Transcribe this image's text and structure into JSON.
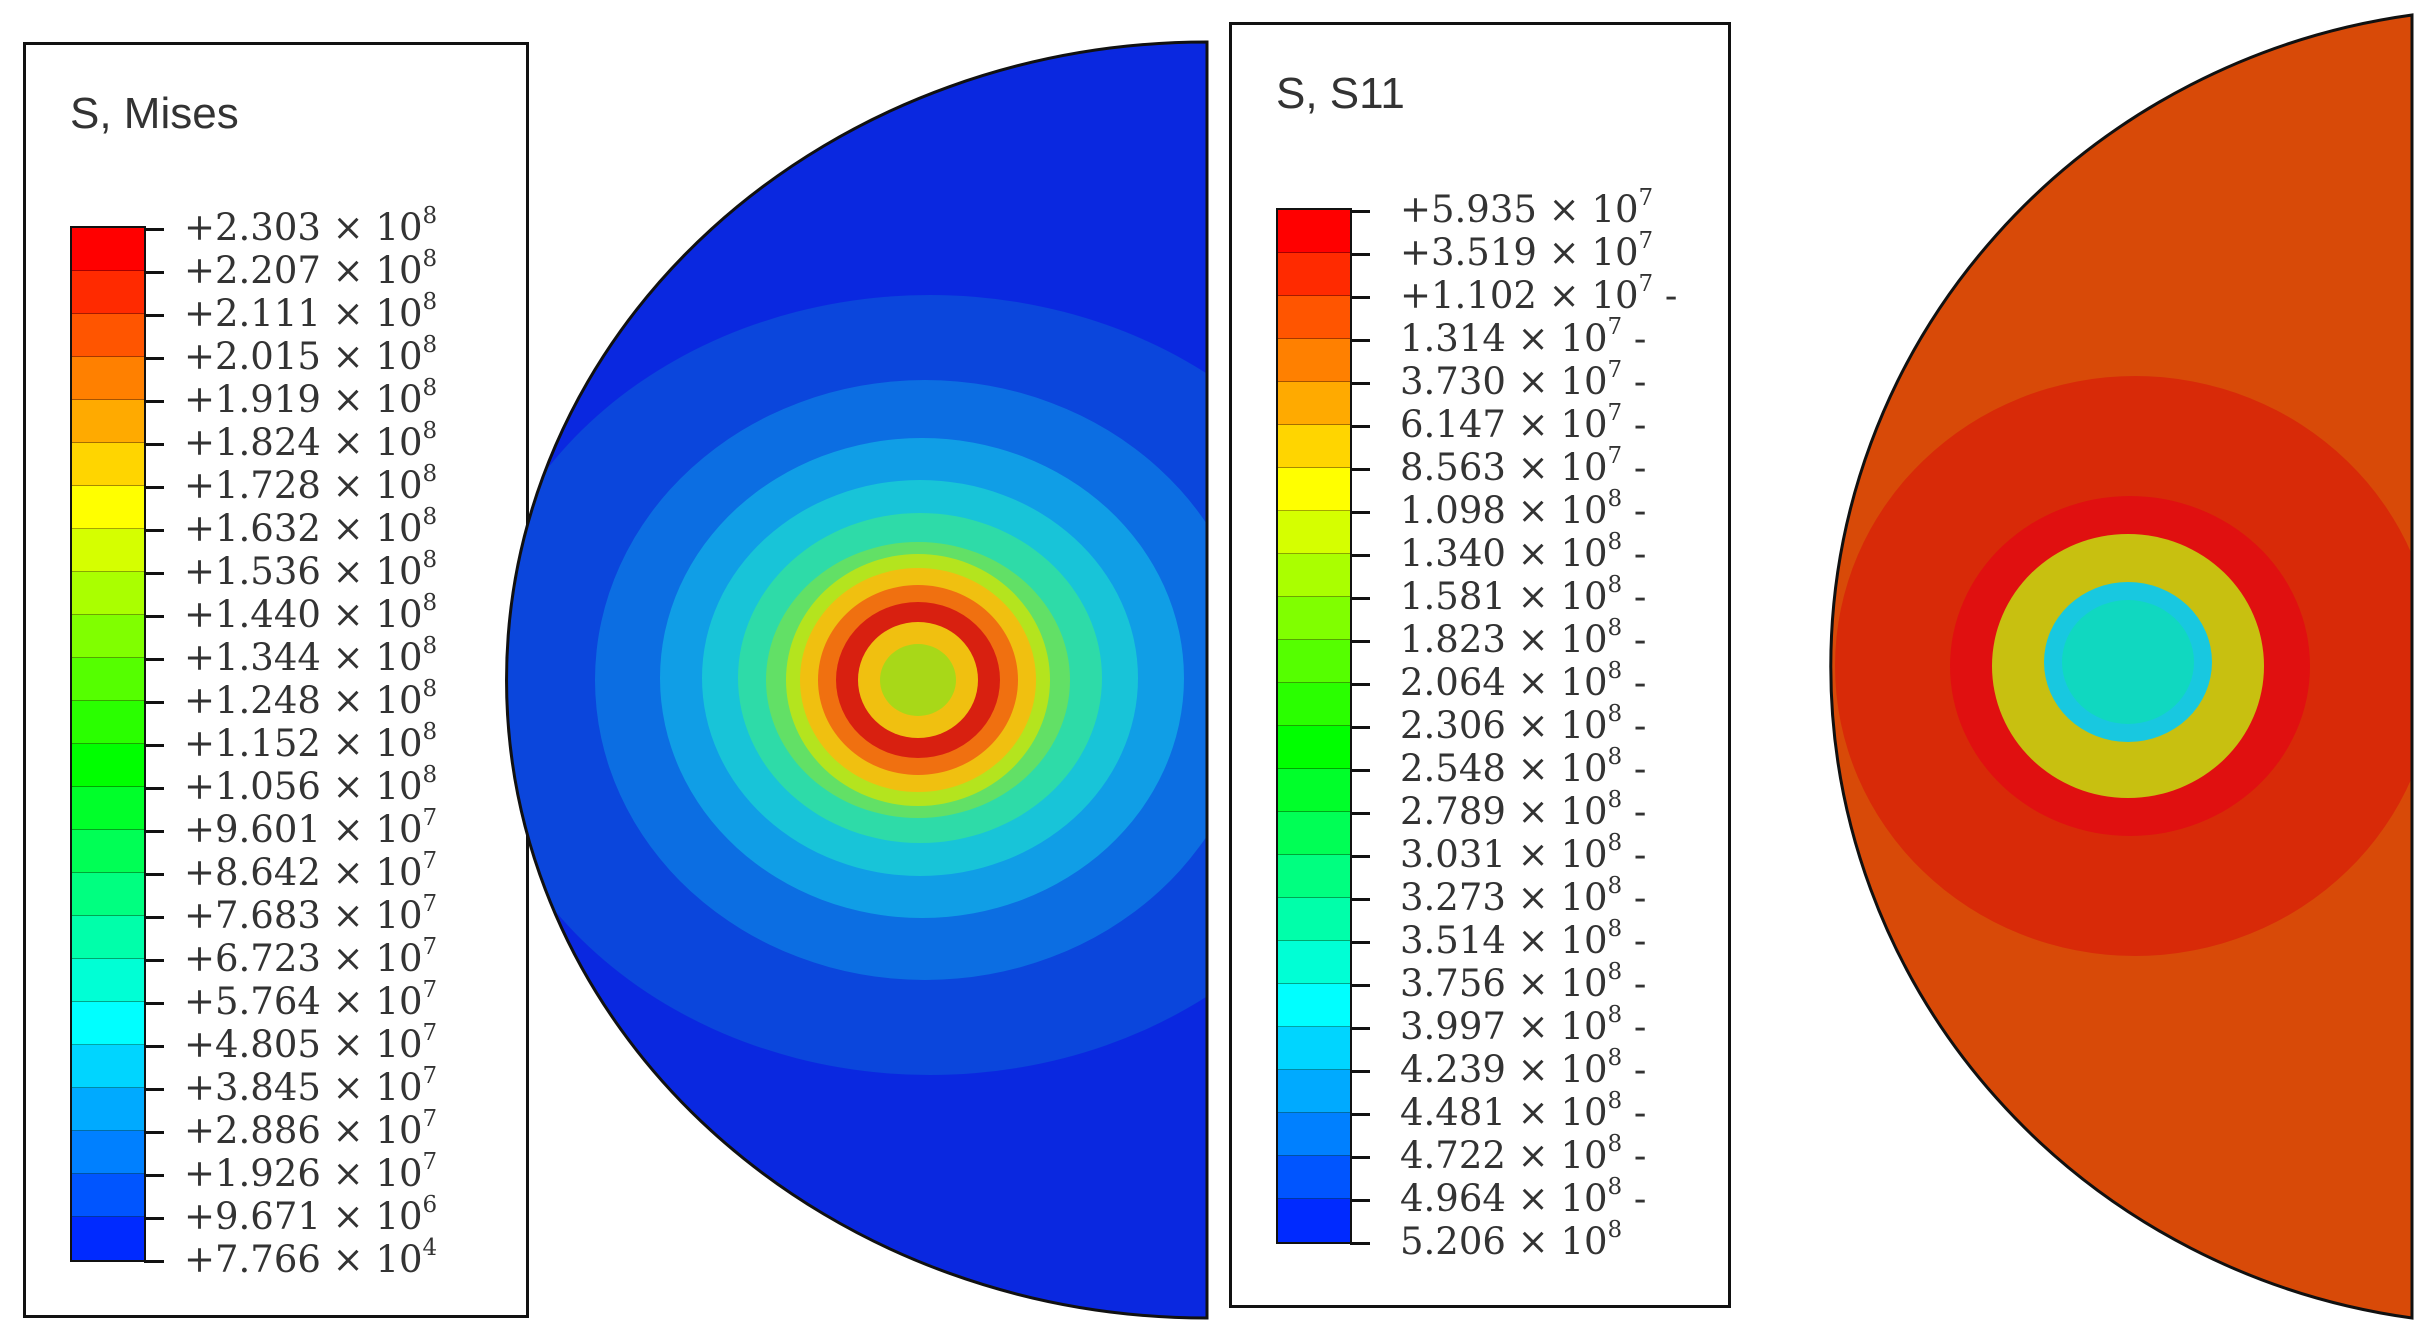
{
  "mises": {
    "title": "S, Mises",
    "labels": [
      {
        "sign": "+",
        "mantissa": "2.303",
        "exp": "8",
        "suffix": ""
      },
      {
        "sign": "+",
        "mantissa": "2.207",
        "exp": "8",
        "suffix": ""
      },
      {
        "sign": "+",
        "mantissa": "2.111",
        "exp": "8",
        "suffix": ""
      },
      {
        "sign": "+",
        "mantissa": "2.015",
        "exp": "8",
        "suffix": ""
      },
      {
        "sign": "+",
        "mantissa": "1.919",
        "exp": "8",
        "suffix": ""
      },
      {
        "sign": "+",
        "mantissa": "1.824",
        "exp": "8",
        "suffix": ""
      },
      {
        "sign": "+",
        "mantissa": "1.728",
        "exp": "8",
        "suffix": ""
      },
      {
        "sign": "+",
        "mantissa": "1.632",
        "exp": "8",
        "suffix": ""
      },
      {
        "sign": "+",
        "mantissa": "1.536",
        "exp": "8",
        "suffix": ""
      },
      {
        "sign": "+",
        "mantissa": "1.440",
        "exp": "8",
        "suffix": ""
      },
      {
        "sign": "+",
        "mantissa": "1.344",
        "exp": "8",
        "suffix": ""
      },
      {
        "sign": "+",
        "mantissa": "1.248",
        "exp": "8",
        "suffix": ""
      },
      {
        "sign": "+",
        "mantissa": "1.152",
        "exp": "8",
        "suffix": ""
      },
      {
        "sign": "+",
        "mantissa": "1.056",
        "exp": "8",
        "suffix": ""
      },
      {
        "sign": "+",
        "mantissa": "9.601",
        "exp": "7",
        "suffix": ""
      },
      {
        "sign": "+",
        "mantissa": "8.642",
        "exp": "7",
        "suffix": ""
      },
      {
        "sign": "+",
        "mantissa": "7.683",
        "exp": "7",
        "suffix": ""
      },
      {
        "sign": "+",
        "mantissa": "6.723",
        "exp": "7",
        "suffix": ""
      },
      {
        "sign": "+",
        "mantissa": "5.764",
        "exp": "7",
        "suffix": ""
      },
      {
        "sign": "+",
        "mantissa": "4.805",
        "exp": "7",
        "suffix": ""
      },
      {
        "sign": "+",
        "mantissa": "3.845",
        "exp": "7",
        "suffix": ""
      },
      {
        "sign": "+",
        "mantissa": "2.886",
        "exp": "7",
        "suffix": ""
      },
      {
        "sign": "+",
        "mantissa": "1.926",
        "exp": "7",
        "suffix": ""
      },
      {
        "sign": "+",
        "mantissa": "9.671",
        "exp": "6",
        "suffix": ""
      },
      {
        "sign": "+",
        "mantissa": "7.766",
        "exp": "4",
        "suffix": ""
      }
    ]
  },
  "s11": {
    "title": "S, S11",
    "labels": [
      {
        "sign": "+",
        "mantissa": "5.935",
        "exp": "7",
        "suffix": ""
      },
      {
        "sign": "+",
        "mantissa": "3.519",
        "exp": "7",
        "suffix": ""
      },
      {
        "sign": "+",
        "mantissa": "1.102",
        "exp": "7",
        "suffix": " -"
      },
      {
        "sign": "",
        "mantissa": "1.314",
        "exp": "7",
        "suffix": " -"
      },
      {
        "sign": "",
        "mantissa": "3.730",
        "exp": "7",
        "suffix": " -"
      },
      {
        "sign": "",
        "mantissa": "6.147",
        "exp": "7",
        "suffix": " -"
      },
      {
        "sign": "",
        "mantissa": "8.563",
        "exp": "7",
        "suffix": " -"
      },
      {
        "sign": "",
        "mantissa": "1.098",
        "exp": "8",
        "suffix": " -"
      },
      {
        "sign": "",
        "mantissa": "1.340",
        "exp": "8",
        "suffix": " -"
      },
      {
        "sign": "",
        "mantissa": "1.581",
        "exp": "8",
        "suffix": " -"
      },
      {
        "sign": "",
        "mantissa": "1.823",
        "exp": "8",
        "suffix": " -"
      },
      {
        "sign": "",
        "mantissa": "2.064",
        "exp": "8",
        "suffix": " -"
      },
      {
        "sign": "",
        "mantissa": "2.306",
        "exp": "8",
        "suffix": " -"
      },
      {
        "sign": "",
        "mantissa": "2.548",
        "exp": "8",
        "suffix": " -"
      },
      {
        "sign": "",
        "mantissa": "2.789",
        "exp": "8",
        "suffix": " -"
      },
      {
        "sign": "",
        "mantissa": "3.031",
        "exp": "8",
        "suffix": " -"
      },
      {
        "sign": "",
        "mantissa": "3.273",
        "exp": "8",
        "suffix": " -"
      },
      {
        "sign": "",
        "mantissa": "3.514",
        "exp": "8",
        "suffix": " -"
      },
      {
        "sign": "",
        "mantissa": "3.756",
        "exp": "8",
        "suffix": " -"
      },
      {
        "sign": "",
        "mantissa": "3.997",
        "exp": "8",
        "suffix": " -"
      },
      {
        "sign": "",
        "mantissa": "4.239",
        "exp": "8",
        "suffix": " -"
      },
      {
        "sign": "",
        "mantissa": "4.481",
        "exp": "8",
        "suffix": " -"
      },
      {
        "sign": "",
        "mantissa": "4.722",
        "exp": "8",
        "suffix": " -"
      },
      {
        "sign": "",
        "mantissa": "4.964",
        "exp": "8",
        "suffix": " -"
      },
      {
        "sign": "",
        "mantissa": "5.206",
        "exp": "8",
        "suffix": ""
      }
    ]
  },
  "colormap": [
    "#ff0000",
    "#ff2a00",
    "#ff5500",
    "#ff8000",
    "#ffaa00",
    "#ffd500",
    "#ffff00",
    "#d5ff00",
    "#aaff00",
    "#80ff00",
    "#55ff00",
    "#2aff00",
    "#00ff00",
    "#00ff2a",
    "#00ff55",
    "#00ff80",
    "#00ffaa",
    "#00ffd5",
    "#00ffff",
    "#00d5ff",
    "#00aaff",
    "#0080ff",
    "#0055ff",
    "#002aff",
    "#0000ff"
  ],
  "plot_colors": {
    "mises": {
      "outer": "#0a28e0",
      "band1": "#0b46dc",
      "band2": "#0c6ee2",
      "band3": "#109ee6",
      "band4": "#18c4d8",
      "band5": "#2edba8",
      "band6": "#62e066",
      "band7": "#b4e41e",
      "band8": "#f0c010",
      "band9": "#f07010",
      "peak": "#d82010",
      "center": "#a8d818"
    },
    "s11": {
      "outer": "#d84a08",
      "band1": "#d82a08",
      "ring_red": "#e01010",
      "ring_yellow": "#c8c010",
      "inner": "#18c8e0",
      "center": "#10d8c0"
    }
  },
  "times_sign": "×",
  "base": "10"
}
